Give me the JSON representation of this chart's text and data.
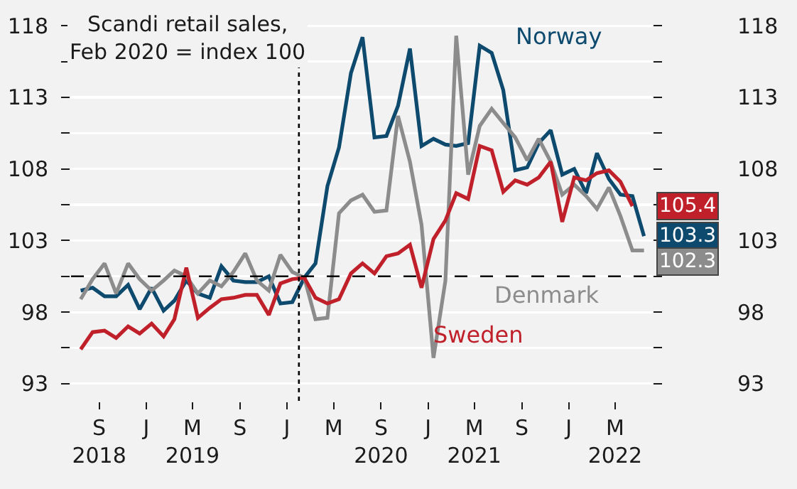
{
  "chart_data": {
    "type": "line",
    "title": "Scandi retail sales,\nFeb 2020 = index 100",
    "x": [
      "2018-07-15",
      "2018-08-15",
      "2018-09-15",
      "2018-10-15",
      "2018-11-15",
      "2018-12-15",
      "2019-01-15",
      "2019-02-15",
      "2019-03-15",
      "2019-04-15",
      "2019-05-15",
      "2019-06-15",
      "2019-07-15",
      "2019-08-15",
      "2019-09-15",
      "2019-10-15",
      "2019-11-15",
      "2019-12-15",
      "2020-01-15",
      "2020-02-15",
      "2020-03-15",
      "2020-04-15",
      "2020-05-15",
      "2020-06-15",
      "2020-07-15",
      "2020-08-15",
      "2020-09-15",
      "2020-10-15",
      "2020-11-15",
      "2020-12-15",
      "2021-01-15",
      "2021-02-15",
      "2021-03-15",
      "2021-04-15",
      "2021-05-15",
      "2021-06-15",
      "2021-07-15",
      "2021-08-15",
      "2021-09-15",
      "2021-10-15",
      "2021-11-15",
      "2021-12-15",
      "2022-01-15",
      "2022-02-15",
      "2022-03-15",
      "2022-04-15",
      "2022-05-15",
      "2022-06-15",
      "2022-07-15"
    ],
    "series": [
      {
        "name": "Norway",
        "color": "#0d4a6e",
        "values": [
          99.5,
          99.7,
          99.1,
          99.1,
          99.9,
          98.2,
          99.7,
          98.1,
          98.8,
          100.2,
          99.3,
          99.0,
          101.2,
          100.2,
          100.1,
          100.1,
          100.5,
          98.6,
          98.7,
          100.4,
          101.4,
          106.8,
          109.5,
          114.7,
          117.2,
          110.2,
          110.3,
          112.4,
          116.4,
          109.6,
          110.1,
          109.7,
          109.6,
          109.8,
          116.6,
          116.1,
          113.5,
          107.9,
          108.1,
          109.8,
          110.7,
          107.6,
          108.0,
          106.3,
          109.1,
          107.3,
          106.2,
          106.1,
          103.3
        ],
        "value_labels": [
          null,
          null,
          null,
          null,
          null,
          null,
          null,
          null,
          null,
          null,
          null,
          null,
          null,
          null,
          null,
          null,
          null,
          null,
          null,
          null,
          null,
          null,
          null,
          null,
          null,
          null,
          null,
          null,
          null,
          null,
          null,
          null,
          null,
          null,
          null,
          null,
          null,
          null,
          null,
          null,
          null,
          null,
          null,
          null,
          null,
          null,
          null,
          null,
          "103.3"
        ]
      },
      {
        "name": "Denmark",
        "color": "#8c8c8c",
        "values": [
          98.9,
          100.3,
          101.4,
          99.3,
          101.4,
          100.3,
          99.5,
          100.2,
          100.9,
          100.5,
          99.3,
          100.2,
          99.8,
          100.8,
          102.1,
          100.2,
          99.5,
          102.0,
          100.8,
          100.4,
          97.5,
          97.6,
          104.9,
          105.8,
          106.2,
          105.0,
          105.1,
          111.7,
          108.5,
          104.1,
          94.8,
          100.2,
          117.3,
          107.6,
          111.0,
          112.2,
          111.2,
          110.2,
          108.6,
          110.1,
          108.5,
          106.2,
          106.9,
          106.1,
          105.2,
          106.7,
          104.7,
          102.3,
          102.3
        ],
        "value_labels": [
          null,
          null,
          null,
          null,
          null,
          null,
          null,
          null,
          null,
          null,
          null,
          null,
          null,
          null,
          null,
          null,
          null,
          null,
          null,
          null,
          null,
          null,
          null,
          null,
          null,
          null,
          null,
          null,
          null,
          null,
          null,
          null,
          null,
          null,
          null,
          null,
          null,
          null,
          null,
          null,
          null,
          null,
          null,
          null,
          null,
          null,
          null,
          null,
          "102.3"
        ]
      },
      {
        "name": "Sweden",
        "color": "#c0202a",
        "values": [
          95.4,
          96.6,
          96.7,
          96.2,
          97.0,
          96.5,
          97.2,
          96.3,
          97.5,
          101.1,
          97.6,
          98.3,
          98.9,
          99.0,
          99.2,
          99.2,
          97.8,
          100.0,
          100.3,
          100.4,
          99.0,
          98.6,
          98.9,
          100.7,
          101.4,
          100.7,
          101.9,
          102.1,
          102.7,
          99.7,
          103.1,
          104.4,
          106.3,
          105.9,
          109.6,
          109.3,
          106.4,
          107.2,
          106.9,
          107.4,
          108.5,
          104.3,
          107.4,
          107.2,
          107.7,
          107.9,
          107.1,
          105.4,
          null
        ],
        "value_labels": [
          null,
          null,
          null,
          null,
          null,
          null,
          null,
          null,
          null,
          null,
          null,
          null,
          null,
          null,
          null,
          null,
          null,
          null,
          null,
          null,
          null,
          null,
          null,
          null,
          null,
          null,
          null,
          null,
          null,
          null,
          null,
          null,
          null,
          null,
          null,
          null,
          null,
          null,
          null,
          null,
          null,
          null,
          null,
          null,
          null,
          null,
          null,
          "105.4",
          null
        ]
      }
    ],
    "xlim": [
      "2018-06-20",
      "2022-08-05"
    ],
    "xticks": [
      {
        "value": "2018-09-01",
        "label": "S\n2018"
      },
      {
        "value": "2019-01-01",
        "label": "J"
      },
      {
        "value": "2019-05-01",
        "label": "M\n2019"
      },
      {
        "value": "2019-09-01",
        "label": "S"
      },
      {
        "value": "2020-01-01",
        "label": "J"
      },
      {
        "value": "2020-05-01",
        "label": "M"
      },
      {
        "value": "2020-09-01",
        "label": "S\n2020"
      },
      {
        "value": "2021-01-01",
        "label": "J"
      },
      {
        "value": "2021-05-01",
        "label": "M\n2021"
      },
      {
        "value": "2021-09-01",
        "label": "S"
      },
      {
        "value": "2022-01-01",
        "label": "J"
      },
      {
        "value": "2022-05-01",
        "label": "M\n2022"
      }
    ],
    "ylim": [
      91.8,
      119.2
    ],
    "yticks": [
      93,
      {
        "value": 95.5,
        "label": null
      },
      98,
      {
        "value": 100.5,
        "label": null
      },
      103,
      {
        "value": 105.5,
        "label": null
      },
      108,
      {
        "value": 110.5,
        "label": null
      },
      113,
      {
        "value": 115.5,
        "label": null
      },
      118
    ],
    "y2lim": [
      91.8,
      119.2
    ],
    "y2ticks": [
      93,
      {
        "value": 95.5,
        "label": null
      },
      98,
      {
        "value": 100.5,
        "label": null
      },
      103,
      {
        "value": 105.5,
        "label": null
      },
      108,
      {
        "value": 110.5,
        "label": null
      },
      113,
      {
        "value": 115.5,
        "label": null
      },
      118
    ],
    "ref_lines": [
      {
        "axis": "x",
        "value": "2020-02-01",
        "label": null,
        "color": "#000000",
        "line_style": "dotted"
      },
      {
        "axis": "y",
        "value": 100.5,
        "label": null,
        "color": "#000000",
        "line_style": "dashed"
      }
    ],
    "grid": "y",
    "legend": false,
    "marker": "none",
    "line_style": "solid"
  }
}
